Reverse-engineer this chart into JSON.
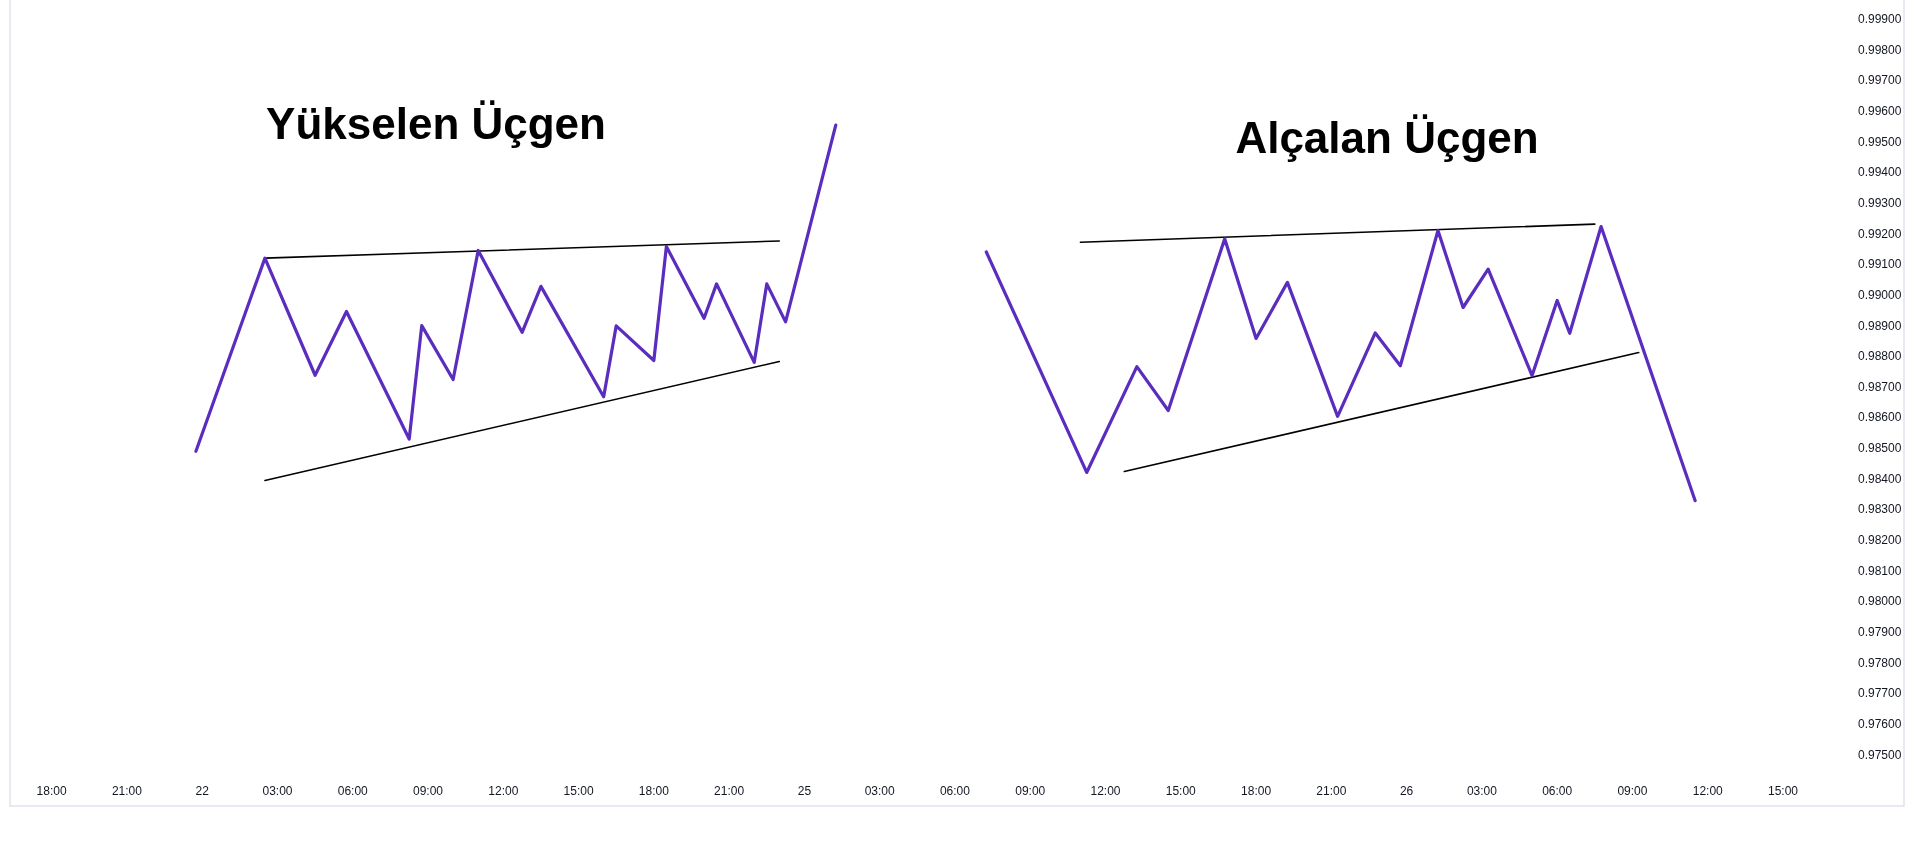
{
  "chart_data": {
    "type": "line",
    "categories": [
      null,
      null,
      null,
      null,
      null,
      null,
      "18:00",
      null,
      null,
      null,
      null,
      null,
      null,
      null,
      null,
      null,
      null,
      null,
      "21:00",
      null,
      null,
      null,
      null,
      null,
      null,
      null,
      null,
      null,
      null,
      null,
      "22",
      null,
      null,
      null,
      null,
      null,
      null,
      null,
      null,
      null,
      null,
      null,
      "03:00",
      null,
      null,
      null,
      null,
      null,
      null,
      null,
      null,
      null,
      null,
      null,
      "06:00",
      null,
      null,
      null,
      null,
      null,
      null,
      null,
      null,
      null,
      null,
      null,
      "09:00",
      null,
      null,
      null,
      null,
      null,
      null,
      null,
      null,
      null,
      null,
      null,
      "12:00",
      null,
      null,
      null,
      null,
      null,
      null,
      null,
      null,
      null,
      null,
      null,
      "15:00",
      null,
      null,
      null,
      null,
      null,
      null,
      null,
      null,
      null,
      null,
      null,
      "18:00",
      null,
      null,
      null,
      null,
      null,
      null,
      null,
      null,
      null,
      null,
      null,
      "21:00",
      null,
      null,
      null,
      null,
      null,
      null,
      null,
      null,
      null,
      null,
      null,
      "25",
      null,
      null,
      null,
      null,
      null,
      null,
      null,
      null,
      null,
      null,
      null,
      "03:00",
      null,
      null,
      null,
      null,
      null,
      null,
      null,
      null,
      null,
      null,
      null,
      "06:00",
      null,
      null,
      null,
      null,
      null,
      null,
      null,
      null,
      null,
      null,
      null,
      "09:00",
      null,
      null,
      null,
      null,
      null,
      null,
      null,
      null,
      null,
      null,
      null,
      "12:00",
      null,
      null,
      null,
      null,
      null,
      null,
      null,
      null,
      null,
      null,
      null,
      "15:00",
      null,
      null,
      null,
      null,
      null,
      null,
      null,
      null,
      null,
      null,
      null,
      "18:00",
      null,
      null,
      null,
      null,
      null,
      null,
      null,
      null,
      null,
      null,
      null,
      "21:00",
      null,
      null,
      null,
      null,
      null,
      null,
      null,
      null,
      null,
      null,
      null,
      "26",
      null,
      null,
      null,
      null,
      null,
      null,
      null,
      null,
      null,
      null,
      null,
      "03:00",
      null,
      null,
      null,
      null,
      null,
      null,
      null,
      null,
      null,
      null,
      null,
      "06:00",
      null,
      null,
      null,
      null,
      null,
      null,
      null,
      null,
      null,
      null,
      null,
      "09:00",
      null,
      null,
      null,
      null,
      null,
      null,
      null,
      null,
      null,
      null,
      null,
      "12:00",
      null,
      null,
      null,
      null,
      null,
      null,
      null,
      null,
      null,
      null,
      null,
      "15:00",
      null,
      null,
      null,
      null,
      null,
      null,
      null,
      null,
      null,
      null,
      null
    ],
    "series": [
      {
        "color": "#5a2dbe",
        "values": [
          null,
          null,
          null,
          null,
          null,
          null,
          null,
          null,
          null,
          null,
          null,
          null,
          null,
          null,
          null,
          null,
          null,
          null,
          null,
          null,
          null,
          null,
          null,
          null,
          null,
          null,
          null,
          null,
          null,
          0.98492,
          null,
          null,
          null,
          null,
          null,
          null,
          null,
          null,
          null,
          null,
          0.99122,
          null,
          null,
          null,
          null,
          null,
          null,
          null,
          0.9874,
          null,
          null,
          null,
          null,
          0.98948,
          null,
          null,
          null,
          null,
          null,
          null,
          null,
          null,
          null,
          0.98532,
          null,
          0.98902,
          null,
          null,
          null,
          null,
          0.98726,
          null,
          null,
          null,
          0.99147,
          null,
          null,
          null,
          null,
          null,
          null,
          0.9888,
          null,
          null,
          0.9903,
          null,
          null,
          null,
          null,
          null,
          null,
          null,
          null,
          null,
          0.9867,
          null,
          0.98901,
          null,
          null,
          null,
          null,
          null,
          0.98788,
          null,
          0.9916,
          null,
          null,
          null,
          null,
          null,
          0.98926,
          null,
          0.99038,
          null,
          null,
          null,
          null,
          null,
          0.98782,
          null,
          0.99038,
          null,
          null,
          0.98914,
          null,
          null,
          null,
          null,
          null,
          null,
          null,
          0.99556,
          null,
          null,
          null,
          null,
          null,
          null,
          null,
          null,
          null,
          null,
          null,
          null,
          null,
          null,
          null,
          null,
          null,
          null,
          null,
          null,
          null,
          null,
          null,
          null,
          null,
          null,
          null,
          null,
          null,
          null,
          null,
          null,
          null,
          null,
          null,
          null,
          null,
          null,
          null,
          null,
          null,
          null,
          null,
          null,
          null,
          null,
          null,
          null,
          null,
          null,
          null,
          null,
          null,
          null,
          null,
          null,
          null,
          null,
          null,
          null,
          null,
          null,
          null,
          null,
          null,
          null,
          null,
          null,
          null,
          null,
          null,
          null,
          null,
          null,
          null,
          null,
          null,
          null,
          null,
          null,
          null,
          null,
          null,
          null,
          null,
          null,
          null,
          null,
          null,
          null,
          null,
          null,
          null,
          null,
          null,
          null,
          null,
          null,
          null,
          null,
          null,
          null,
          null,
          null,
          null,
          null,
          null,
          null,
          null,
          null,
          null,
          null,
          null,
          null,
          null,
          null,
          null,
          null,
          null,
          null,
          null,
          null,
          null,
          null,
          null,
          null,
          null,
          null,
          null,
          null,
          null,
          null,
          null,
          null,
          null,
          null,
          null,
          null,
          null,
          null,
          null,
          null,
          null,
          null,
          null,
          null,
          null,
          null,
          null,
          null,
          null,
          null,
          null,
          null,
          null,
          null,
          null,
          null,
          null,
          null,
          null,
          null
        ]
      },
      {
        "color": "#000000",
        "values": [
          null,
          null,
          null,
          null,
          null,
          null,
          null,
          null,
          null,
          null,
          null,
          null,
          null,
          null,
          null,
          null,
          null,
          null,
          null,
          null,
          null,
          null,
          null,
          null,
          null,
          null,
          null,
          null,
          null,
          null,
          null,
          null,
          null,
          null,
          null,
          null,
          null,
          null,
          null,
          null,
          0.99122,
          null,
          null,
          null,
          null,
          null,
          null,
          null,
          null,
          null,
          null,
          null,
          null,
          null,
          null,
          null,
          null,
          null,
          null,
          null,
          null,
          null,
          null,
          null,
          null,
          null,
          null,
          null,
          null,
          null,
          null,
          null,
          null,
          null,
          null,
          null,
          null,
          null,
          null,
          null,
          null,
          null,
          null,
          null,
          null,
          null,
          null,
          null,
          null,
          null,
          null,
          null,
          null,
          null,
          null,
          null,
          null,
          null,
          null,
          null,
          null,
          null,
          null,
          null,
          null,
          null,
          null,
          null,
          null,
          null,
          null,
          null,
          null,
          null,
          null,
          null,
          null,
          null,
          null,
          null,
          null,
          null,
          0.99178,
          null,
          null,
          null,
          null,
          null,
          null,
          null,
          null,
          null,
          null,
          null,
          null,
          null,
          null,
          null,
          null,
          null,
          null,
          null,
          null,
          null,
          null,
          null,
          null,
          null,
          null,
          null,
          null,
          null,
          null,
          null,
          null,
          null,
          null,
          null,
          null,
          null,
          null,
          null,
          null,
          null,
          null,
          null,
          null,
          null,
          null,
          null,
          null,
          null,
          null,
          null,
          null,
          null,
          null,
          null,
          null,
          null,
          null,
          null,
          null,
          null,
          null,
          null,
          null,
          null,
          null,
          null,
          null,
          null,
          null,
          null,
          null,
          null,
          null,
          null,
          null,
          null,
          null,
          null,
          null,
          null,
          null,
          null,
          null,
          null,
          null,
          null,
          null,
          null,
          null,
          null,
          null,
          null,
          null,
          null,
          null,
          null,
          null,
          null,
          null,
          null,
          null,
          null,
          null,
          null,
          null,
          null,
          null,
          null,
          null,
          null,
          null,
          null,
          null,
          null,
          null,
          null,
          null,
          null,
          null,
          null,
          null,
          null,
          null,
          null,
          null,
          null,
          null,
          null,
          null,
          null,
          null,
          null,
          null,
          null,
          null,
          null,
          null,
          null,
          null,
          null,
          null,
          null,
          null,
          null,
          null,
          null,
          null,
          null,
          null,
          null,
          null,
          null,
          null,
          null,
          null,
          null,
          null,
          null,
          null,
          null,
          null,
          null,
          null,
          null,
          null,
          null,
          null,
          null,
          null,
          null
        ]
      },
      {
        "color": "#000000",
        "values": [
          null,
          null,
          null,
          null,
          null,
          null,
          null,
          null,
          null,
          null,
          null,
          null,
          null,
          null,
          null,
          null,
          null,
          null,
          null,
          null,
          null,
          null,
          null,
          null,
          null,
          null,
          null,
          null,
          null,
          null,
          null,
          null,
          null,
          null,
          null,
          null,
          null,
          null,
          null,
          null,
          0.98397,
          null,
          null,
          null,
          null,
          null,
          null,
          null,
          null,
          null,
          null,
          null,
          null,
          null,
          null,
          null,
          null,
          null,
          null,
          null,
          null,
          null,
          null,
          null,
          null,
          null,
          null,
          null,
          null,
          null,
          null,
          null,
          null,
          null,
          null,
          null,
          null,
          null,
          null,
          null,
          null,
          null,
          null,
          null,
          null,
          null,
          null,
          null,
          null,
          null,
          null,
          null,
          null,
          null,
          null,
          null,
          null,
          null,
          null,
          null,
          null,
          null,
          null,
          null,
          null,
          null,
          null,
          null,
          null,
          null,
          null,
          null,
          null,
          null,
          null,
          null,
          null,
          null,
          null,
          null,
          null,
          null,
          0.98785,
          null,
          null,
          null,
          null,
          null,
          null,
          null,
          null,
          null,
          null,
          null,
          null,
          null,
          null,
          null,
          null,
          null,
          null,
          null,
          null,
          null,
          null,
          null,
          null,
          null,
          null,
          null,
          null,
          null,
          null,
          null,
          null,
          null,
          null,
          null,
          null,
          null,
          null,
          null,
          null,
          null,
          null,
          null,
          null,
          null,
          null,
          null,
          null,
          null,
          null,
          null,
          null,
          null,
          null,
          null,
          null,
          null,
          null,
          null,
          null,
          null,
          null,
          null,
          null,
          null,
          null,
          null,
          null,
          null,
          null,
          null,
          null,
          null,
          null,
          null,
          null,
          null,
          null,
          null,
          null,
          null,
          null,
          null,
          null,
          null,
          null,
          null,
          null,
          null,
          null,
          null,
          null,
          null,
          null,
          null,
          null,
          null,
          null,
          null,
          null,
          null,
          null,
          null,
          null,
          null,
          null,
          null,
          null,
          null,
          null,
          null,
          null,
          null,
          null,
          null,
          null,
          null,
          null,
          null,
          null,
          null,
          null,
          null,
          null,
          null,
          null,
          null,
          null,
          null,
          null,
          null,
          null,
          null,
          null,
          null,
          null,
          null,
          null,
          null,
          null,
          null,
          null,
          null,
          null,
          null,
          null,
          null,
          null,
          null,
          null,
          null,
          null,
          null,
          null,
          null,
          null,
          null,
          null,
          null,
          null,
          null,
          null,
          null,
          null,
          null,
          null,
          null,
          null,
          null,
          null,
          null
        ]
      },
      {
        "color": "#5a2dbe",
        "values": [
          null,
          null,
          null,
          null,
          null,
          null,
          null,
          null,
          null,
          null,
          null,
          null,
          null,
          null,
          null,
          null,
          null,
          null,
          null,
          null,
          null,
          null,
          null,
          null,
          null,
          null,
          null,
          null,
          null,
          null,
          null,
          null,
          null,
          null,
          null,
          null,
          null,
          null,
          null,
          null,
          null,
          null,
          null,
          null,
          null,
          null,
          null,
          null,
          null,
          null,
          null,
          null,
          null,
          null,
          null,
          null,
          null,
          null,
          null,
          null,
          null,
          null,
          null,
          null,
          null,
          null,
          null,
          null,
          null,
          null,
          null,
          null,
          null,
          null,
          null,
          null,
          null,
          null,
          null,
          null,
          null,
          null,
          null,
          null,
          null,
          null,
          null,
          null,
          null,
          null,
          null,
          null,
          null,
          null,
          null,
          null,
          null,
          null,
          null,
          null,
          null,
          null,
          null,
          null,
          null,
          null,
          null,
          null,
          null,
          null,
          null,
          null,
          null,
          null,
          null,
          null,
          null,
          null,
          null,
          null,
          null,
          null,
          null,
          null,
          null,
          null,
          null,
          null,
          null,
          null,
          null,
          null,
          null,
          null,
          null,
          null,
          null,
          null,
          null,
          null,
          null,
          null,
          null,
          null,
          null,
          null,
          null,
          null,
          null,
          null,
          null,
          null,
          null,
          null,
          null,
          0.99142,
          null,
          null,
          null,
          null,
          null,
          null,
          null,
          null,
          null,
          null,
          null,
          null,
          null,
          null,
          null,
          0.98423,
          null,
          null,
          null,
          null,
          null,
          null,
          null,
          0.98768,
          null,
          null,
          null,
          null,
          0.98625,
          null,
          null,
          null,
          null,
          null,
          null,
          null,
          null,
          0.99185,
          null,
          null,
          null,
          null,
          0.9886,
          null,
          null,
          null,
          null,
          0.99043,
          null,
          null,
          null,
          null,
          null,
          null,
          null,
          0.98606,
          null,
          null,
          null,
          null,
          null,
          0.98878,
          null,
          null,
          null,
          0.98771,
          null,
          null,
          null,
          null,
          null,
          0.99212,
          null,
          null,
          null,
          0.98961,
          null,
          null,
          null,
          0.99086,
          null,
          null,
          null,
          null,
          null,
          null,
          0.98739,
          null,
          null,
          null,
          0.98984,
          null,
          0.98877,
          null,
          null,
          null,
          null,
          0.99225,
          null,
          null,
          null,
          null,
          null,
          null,
          null,
          null,
          null,
          null,
          null,
          null,
          null,
          null,
          0.98331,
          null,
          null,
          null,
          null,
          null,
          null,
          null,
          null,
          null,
          null,
          null,
          null,
          null,
          null,
          null,
          null,
          null,
          null,
          null,
          null,
          null,
          null,
          null,
          null,
          null
        ]
      },
      {
        "color": "#000000",
        "values": [
          null,
          null,
          null,
          null,
          null,
          null,
          null,
          null,
          null,
          null,
          null,
          null,
          null,
          null,
          null,
          null,
          null,
          null,
          null,
          null,
          null,
          null,
          null,
          null,
          null,
          null,
          null,
          null,
          null,
          null,
          null,
          null,
          null,
          null,
          null,
          null,
          null,
          null,
          null,
          null,
          null,
          null,
          null,
          null,
          null,
          null,
          null,
          null,
          null,
          null,
          null,
          null,
          null,
          null,
          null,
          null,
          null,
          null,
          null,
          null,
          null,
          null,
          null,
          null,
          null,
          null,
          null,
          null,
          null,
          null,
          null,
          null,
          null,
          null,
          null,
          null,
          null,
          null,
          null,
          null,
          null,
          null,
          null,
          null,
          null,
          null,
          null,
          null,
          null,
          null,
          null,
          null,
          null,
          null,
          null,
          null,
          null,
          null,
          null,
          null,
          null,
          null,
          null,
          null,
          null,
          null,
          null,
          null,
          null,
          null,
          null,
          null,
          null,
          null,
          null,
          null,
          null,
          null,
          null,
          null,
          null,
          null,
          null,
          null,
          null,
          null,
          null,
          null,
          null,
          null,
          null,
          null,
          null,
          null,
          null,
          null,
          null,
          null,
          null,
          null,
          null,
          null,
          null,
          null,
          null,
          null,
          null,
          null,
          null,
          null,
          null,
          null,
          null,
          null,
          null,
          null,
          null,
          null,
          null,
          null,
          null,
          null,
          null,
          null,
          null,
          null,
          null,
          null,
          null,
          null,
          0.99174,
          null,
          null,
          null,
          null,
          null,
          null,
          null,
          null,
          null,
          null,
          null,
          null,
          null,
          null,
          null,
          null,
          null,
          null,
          null,
          null,
          null,
          null,
          null,
          null,
          null,
          null,
          null,
          null,
          null,
          null,
          null,
          null,
          null,
          null,
          null,
          null,
          null,
          null,
          null,
          null,
          null,
          null,
          null,
          null,
          null,
          null,
          null,
          null,
          null,
          null,
          null,
          null,
          null,
          null,
          null,
          null,
          null,
          null,
          null,
          null,
          null,
          null,
          null,
          null,
          null,
          null,
          null,
          null,
          null,
          null,
          null,
          null,
          null,
          null,
          null,
          null,
          null,
          null,
          null,
          null,
          null,
          0.99233,
          null,
          null,
          null,
          null,
          null,
          null,
          null,
          null,
          null,
          null,
          null,
          null,
          null,
          null,
          null,
          null,
          null,
          null,
          null,
          null,
          null,
          null,
          null,
          null,
          null,
          null,
          null,
          null,
          null,
          null,
          null,
          null,
          null,
          null,
          null,
          null,
          null,
          null,
          null,
          null,
          null
        ]
      },
      {
        "color": "#000000",
        "values": [
          null,
          null,
          null,
          null,
          null,
          null,
          null,
          null,
          null,
          null,
          null,
          null,
          null,
          null,
          null,
          null,
          null,
          null,
          null,
          null,
          null,
          null,
          null,
          null,
          null,
          null,
          null,
          null,
          null,
          null,
          null,
          null,
          null,
          null,
          null,
          null,
          null,
          null,
          null,
          null,
          null,
          null,
          null,
          null,
          null,
          null,
          null,
          null,
          null,
          null,
          null,
          null,
          null,
          null,
          null,
          null,
          null,
          null,
          null,
          null,
          null,
          null,
          null,
          null,
          null,
          null,
          null,
          null,
          null,
          null,
          null,
          null,
          null,
          null,
          null,
          null,
          null,
          null,
          null,
          null,
          null,
          null,
          null,
          null,
          null,
          null,
          null,
          null,
          null,
          null,
          null,
          null,
          null,
          null,
          null,
          null,
          null,
          null,
          null,
          null,
          null,
          null,
          null,
          null,
          null,
          null,
          null,
          null,
          null,
          null,
          null,
          null,
          null,
          null,
          null,
          null,
          null,
          null,
          null,
          null,
          null,
          null,
          null,
          null,
          null,
          null,
          null,
          null,
          null,
          null,
          null,
          null,
          null,
          null,
          null,
          null,
          null,
          null,
          null,
          null,
          null,
          null,
          null,
          null,
          null,
          null,
          null,
          null,
          null,
          null,
          null,
          null,
          null,
          null,
          null,
          null,
          null,
          null,
          null,
          null,
          null,
          null,
          null,
          null,
          null,
          null,
          null,
          null,
          null,
          null,
          null,
          null,
          null,
          null,
          null,
          null,
          null,
          0.98426,
          null,
          null,
          null,
          null,
          null,
          null,
          null,
          null,
          null,
          null,
          null,
          null,
          null,
          null,
          null,
          null,
          null,
          null,
          null,
          null,
          null,
          null,
          null,
          null,
          null,
          null,
          null,
          null,
          null,
          null,
          null,
          null,
          null,
          null,
          null,
          null,
          null,
          null,
          null,
          null,
          null,
          null,
          null,
          null,
          null,
          null,
          null,
          null,
          null,
          null,
          null,
          null,
          null,
          null,
          null,
          null,
          null,
          null,
          null,
          null,
          null,
          null,
          null,
          null,
          null,
          null,
          null,
          null,
          null,
          null,
          null,
          null,
          null,
          null,
          null,
          null,
          null,
          null,
          null,
          null,
          null,
          0.98814,
          null,
          null,
          null,
          null,
          null,
          null,
          null,
          null,
          null,
          null,
          null,
          null,
          null,
          null,
          null,
          null,
          null,
          null,
          null,
          null,
          null,
          null,
          null,
          null,
          null,
          null,
          null,
          null,
          null,
          null,
          null,
          null,
          null,
          null
        ]
      }
    ],
    "ylim": [
      0.97335,
      0.99964
    ],
    "yticks": [
      {
        "value": 0.975,
        "label": "0.97500"
      },
      {
        "value": 0.976,
        "label": "0.97600"
      },
      {
        "value": 0.977,
        "label": "0.97700"
      },
      {
        "value": 0.978,
        "label": "0.97800"
      },
      {
        "value": 0.979,
        "label": "0.97900"
      },
      {
        "value": 0.98,
        "label": "0.98000"
      },
      {
        "value": 0.981,
        "label": "0.98100"
      },
      {
        "value": 0.982,
        "label": "0.98200"
      },
      {
        "value": 0.983,
        "label": "0.98300"
      },
      {
        "value": 0.984,
        "label": "0.98400"
      },
      {
        "value": 0.985,
        "label": "0.98500"
      },
      {
        "value": 0.986,
        "label": "0.98600"
      },
      {
        "value": 0.987,
        "label": "0.98700"
      },
      {
        "value": 0.988,
        "label": "0.98800"
      },
      {
        "value": 0.989,
        "label": "0.98900"
      },
      {
        "value": 0.99,
        "label": "0.99000"
      },
      {
        "value": 0.991,
        "label": "0.99100"
      },
      {
        "value": 0.992,
        "label": "0.99200"
      },
      {
        "value": 0.993,
        "label": "0.99300"
      },
      {
        "value": 0.994,
        "label": "0.99400"
      },
      {
        "value": 0.995,
        "label": "0.99500"
      },
      {
        "value": 0.996,
        "label": "0.99600"
      },
      {
        "value": 0.997,
        "label": "0.99700"
      },
      {
        "value": 0.998,
        "label": "0.99800"
      },
      {
        "value": 0.999,
        "label": "0.99900"
      }
    ],
    "annotations": [
      "Yükselen Üçgen",
      "Alçalan Üçgen"
    ]
  }
}
